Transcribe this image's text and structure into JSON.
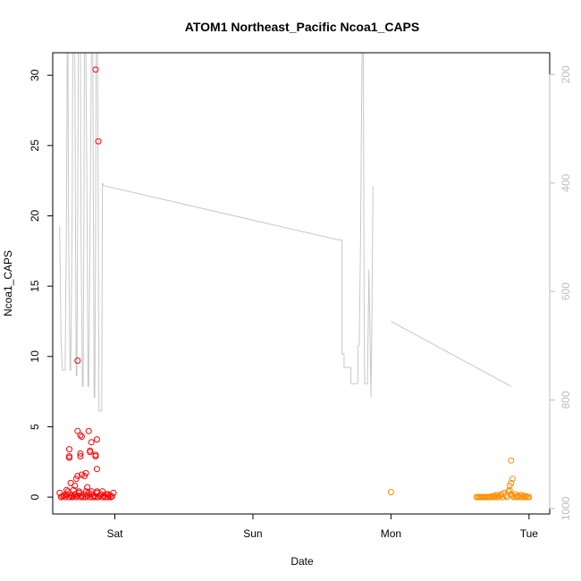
{
  "chart_data": {
    "type": "scatter",
    "title": "ATOM1 Northeast_Pacific Ncoa1_CAPS",
    "xlabel": "Date",
    "ylabel": "Ncoa1_CAPS",
    "x_ticks": [
      {
        "label": "Sat",
        "x": 1.0
      },
      {
        "label": "Sun",
        "x": 2.0
      },
      {
        "label": "Mon",
        "x": 3.0
      },
      {
        "label": "Tue",
        "x": 4.0
      }
    ],
    "xlim": [
      0.55,
      4.15
    ],
    "ylim": [
      -1.2,
      31.6
    ],
    "y_ticks": [
      0,
      5,
      10,
      15,
      20,
      25,
      30
    ],
    "y2_ticks": [
      200,
      400,
      600,
      800,
      1000
    ],
    "y2lim": [
      1010,
      160
    ],
    "grid": false,
    "colors": {
      "series1": "#ff0000",
      "series2": "#ff8c00",
      "depth": "#c8c8c8",
      "axis": "#000000",
      "axis_right": "#bdbdbd"
    },
    "series": [
      {
        "color": "#ff0000",
        "marker": "open-circle",
        "points": [
          [
            0.6,
            0.3
          ],
          [
            0.61,
            0.0
          ],
          [
            0.62,
            0.05
          ],
          [
            0.63,
            0.1
          ],
          [
            0.64,
            0.0
          ],
          [
            0.65,
            0.2
          ],
          [
            0.66,
            0.4
          ],
          [
            0.67,
            0.0
          ],
          [
            0.68,
            0.1
          ],
          [
            0.69,
            0.0
          ],
          [
            0.7,
            0.05
          ],
          [
            0.71,
            0.2
          ],
          [
            0.72,
            0.0
          ],
          [
            0.73,
            0.1
          ],
          [
            0.74,
            0.3
          ],
          [
            0.75,
            0.0
          ],
          [
            0.76,
            0.1
          ],
          [
            0.77,
            0.0
          ],
          [
            0.78,
            0.2
          ],
          [
            0.79,
            0.0
          ],
          [
            0.8,
            0.1
          ],
          [
            0.81,
            0.3
          ],
          [
            0.82,
            0.0
          ],
          [
            0.83,
            0.2
          ],
          [
            0.84,
            0.0
          ],
          [
            0.85,
            0.1
          ],
          [
            0.86,
            0.0
          ],
          [
            0.87,
            0.3
          ],
          [
            0.88,
            0.0
          ],
          [
            0.89,
            0.1
          ],
          [
            0.9,
            0.2
          ],
          [
            0.91,
            0.0
          ],
          [
            0.92,
            0.1
          ],
          [
            0.93,
            0.0
          ],
          [
            0.94,
            0.2
          ],
          [
            0.95,
            0.0
          ],
          [
            0.96,
            0.1
          ],
          [
            0.97,
            0.0
          ],
          [
            0.98,
            0.05
          ],
          [
            0.99,
            0.3
          ],
          [
            0.65,
            0.5
          ],
          [
            0.7,
            0.5
          ],
          [
            0.74,
            0.4
          ],
          [
            0.79,
            0.4
          ],
          [
            0.83,
            0.4
          ],
          [
            0.87,
            0.4
          ],
          [
            0.91,
            0.4
          ],
          [
            0.95,
            0.2
          ],
          [
            0.68,
            1.0
          ],
          [
            0.72,
            1.3
          ],
          [
            0.73,
            1.5
          ],
          [
            0.76,
            1.6
          ],
          [
            0.78,
            1.5
          ],
          [
            0.79,
            1.7
          ],
          [
            0.8,
            0.7
          ],
          [
            0.71,
            0.8
          ],
          [
            0.67,
            2.8
          ],
          [
            0.67,
            2.9
          ],
          [
            0.67,
            3.4
          ],
          [
            0.75,
            2.9
          ],
          [
            0.75,
            3.1
          ],
          [
            0.82,
            3.3
          ],
          [
            0.82,
            3.2
          ],
          [
            0.83,
            3.9
          ],
          [
            0.86,
            2.9
          ],
          [
            0.86,
            3.0
          ],
          [
            0.87,
            2.0
          ],
          [
            0.73,
            4.7
          ],
          [
            0.75,
            4.4
          ],
          [
            0.76,
            4.3
          ],
          [
            0.81,
            4.7
          ],
          [
            0.87,
            4.1
          ],
          [
            0.73,
            9.7
          ],
          [
            0.86,
            30.4
          ],
          [
            0.88,
            25.3
          ]
        ]
      },
      {
        "color": "#ff8c00",
        "marker": "open-circle",
        "points": [
          [
            3.0,
            0.35
          ],
          [
            3.62,
            0.0
          ],
          [
            3.63,
            0.0
          ],
          [
            3.64,
            0.0
          ],
          [
            3.65,
            0.0
          ],
          [
            3.66,
            0.0
          ],
          [
            3.67,
            0.0
          ],
          [
            3.68,
            0.0
          ],
          [
            3.69,
            0.0
          ],
          [
            3.7,
            0.0
          ],
          [
            3.71,
            0.0
          ],
          [
            3.72,
            0.0
          ],
          [
            3.73,
            0.05
          ],
          [
            3.74,
            0.0
          ],
          [
            3.75,
            0.1
          ],
          [
            3.76,
            0.0
          ],
          [
            3.77,
            0.15
          ],
          [
            3.78,
            0.0
          ],
          [
            3.79,
            0.1
          ],
          [
            3.8,
            0.2
          ],
          [
            3.81,
            0.0
          ],
          [
            3.82,
            0.3
          ],
          [
            3.83,
            0.1
          ],
          [
            3.84,
            0.0
          ],
          [
            3.85,
            0.4
          ],
          [
            3.86,
            0.5
          ],
          [
            3.87,
            0.2
          ],
          [
            3.88,
            0.1
          ],
          [
            3.89,
            0.0
          ],
          [
            3.9,
            0.2
          ],
          [
            3.91,
            0.0
          ],
          [
            3.92,
            0.1
          ],
          [
            3.93,
            0.0
          ],
          [
            3.94,
            0.15
          ],
          [
            3.95,
            0.0
          ],
          [
            3.96,
            0.1
          ],
          [
            3.97,
            0.0
          ],
          [
            3.98,
            0.05
          ],
          [
            3.99,
            0.0
          ],
          [
            4.0,
            0.0
          ],
          [
            3.86,
            0.8
          ],
          [
            3.87,
            1.0
          ],
          [
            3.88,
            1.3
          ],
          [
            3.87,
            2.6
          ]
        ]
      }
    ],
    "depth_line": {
      "color": "#c8c8c8",
      "axis": "right",
      "segments": [
        [
          [
            0.6,
            480
          ],
          [
            0.61,
            690
          ],
          [
            0.62,
            745
          ],
          [
            0.63,
            745
          ],
          [
            0.64,
            745
          ],
          [
            0.65,
            460
          ],
          [
            0.655,
            160
          ],
          [
            0.66,
            160
          ],
          [
            0.665,
            500
          ],
          [
            0.675,
            745
          ],
          [
            0.68,
            745
          ],
          [
            0.69,
            500
          ],
          [
            0.695,
            160
          ],
          [
            0.71,
            160
          ],
          [
            0.715,
            500
          ],
          [
            0.72,
            755
          ],
          [
            0.725,
            755
          ],
          [
            0.73,
            500
          ],
          [
            0.735,
            160
          ],
          [
            0.75,
            160
          ],
          [
            0.755,
            500
          ],
          [
            0.765,
            775
          ],
          [
            0.77,
            775
          ],
          [
            0.775,
            500
          ],
          [
            0.78,
            160
          ],
          [
            0.79,
            160
          ],
          [
            0.8,
            500
          ],
          [
            0.805,
            775
          ],
          [
            0.81,
            775
          ],
          [
            0.82,
            500
          ],
          [
            0.83,
            160
          ],
          [
            0.84,
            160
          ],
          [
            0.845,
            500
          ],
          [
            0.85,
            795
          ],
          [
            0.855,
            795
          ],
          [
            0.86,
            500
          ],
          [
            0.865,
            160
          ],
          [
            0.875,
            160
          ],
          [
            0.88,
            500
          ],
          [
            0.885,
            820
          ],
          [
            0.89,
            820
          ],
          [
            0.9,
            820
          ],
          [
            0.905,
            820
          ],
          [
            0.91,
            400
          ],
          [
            0.92,
            405
          ],
          [
            2.62,
            505
          ],
          [
            2.645,
            505
          ],
          [
            2.645,
            715
          ],
          [
            2.66,
            715
          ],
          [
            2.66,
            740
          ],
          [
            2.71,
            740
          ],
          [
            2.71,
            770
          ],
          [
            2.76,
            770
          ],
          [
            2.76,
            700
          ],
          [
            2.77,
            700
          ],
          [
            2.78,
            500
          ],
          [
            2.79,
            160
          ],
          [
            2.8,
            160
          ],
          [
            2.805,
            600
          ],
          [
            2.81,
            770
          ],
          [
            2.83,
            770
          ],
          [
            2.84,
            560
          ],
          [
            2.85,
            700
          ],
          [
            2.855,
            795
          ],
          [
            2.86,
            700
          ],
          [
            2.87,
            405
          ]
        ],
        [
          [
            3.0,
            655
          ],
          [
            3.87,
            775
          ]
        ]
      ]
    }
  }
}
